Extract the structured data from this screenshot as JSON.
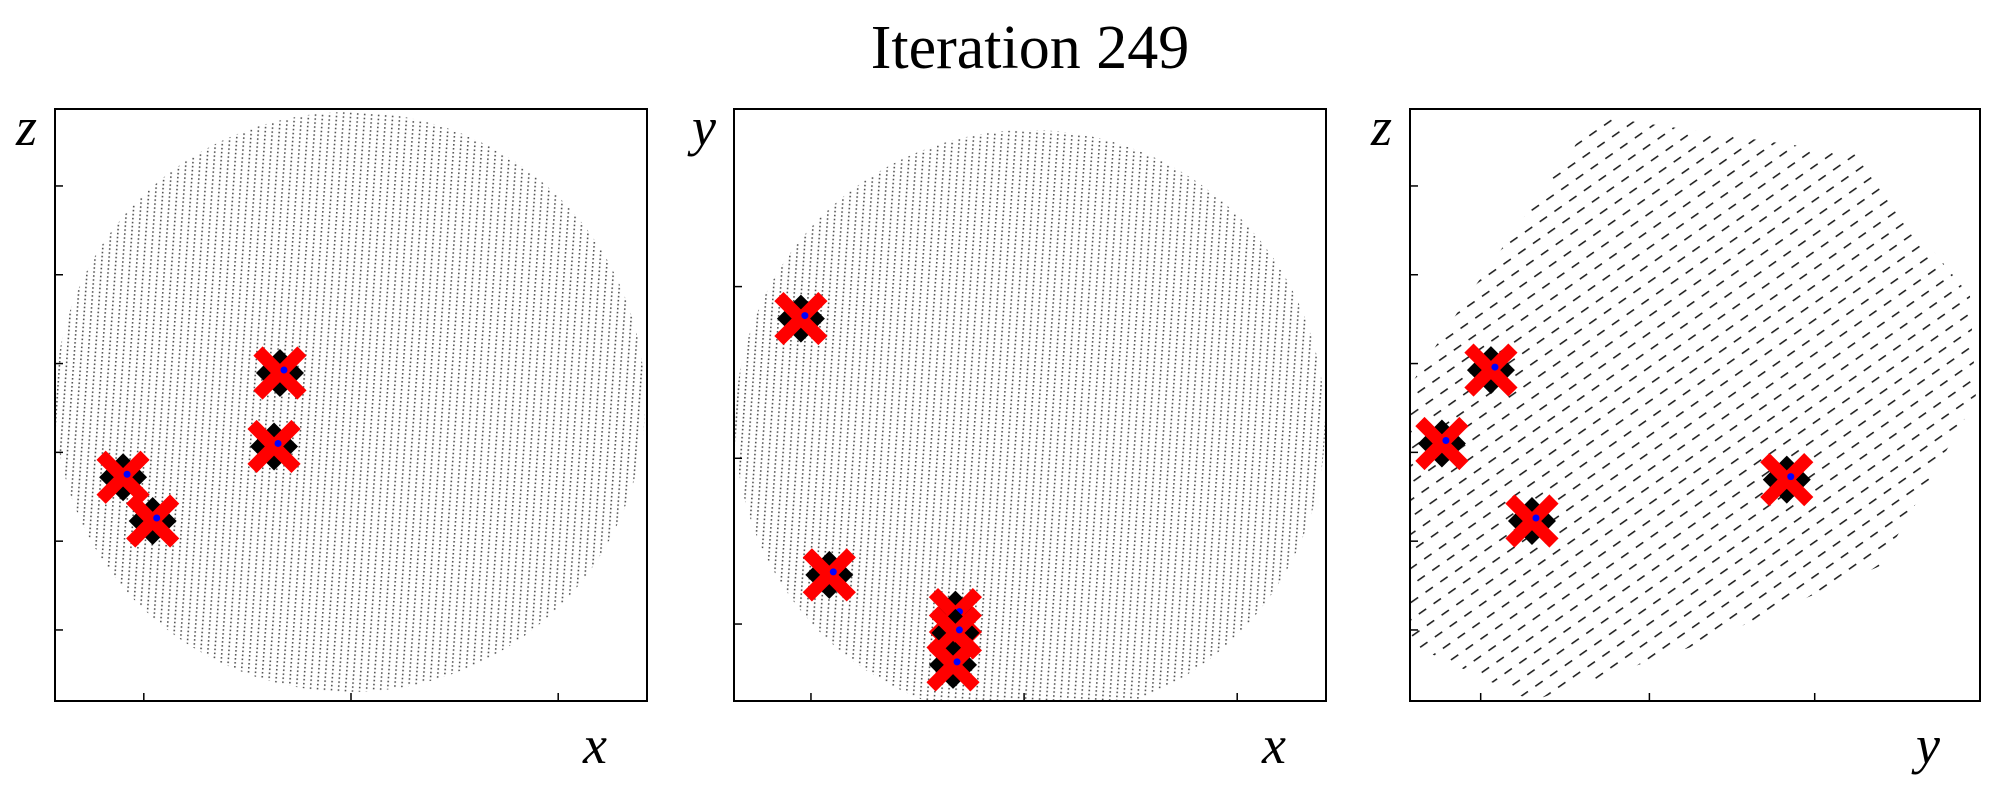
{
  "title": "Iteration 249",
  "chart_data": [
    {
      "type": "scatter",
      "x_label": "x",
      "y_label": "z",
      "xlim": [
        0,
        100
      ],
      "ylim": [
        0,
        100
      ],
      "xticks": [
        15,
        50,
        85
      ],
      "yticks": [
        12,
        27,
        42,
        57,
        72,
        87
      ],
      "x": [
        38,
        37,
        11.5,
        16.5
      ],
      "y": [
        55.4,
        43,
        37.8,
        30.4
      ]
    },
    {
      "type": "scatter",
      "x_label": "x",
      "y_label": "y",
      "xlim": [
        0,
        100
      ],
      "ylim": [
        0,
        100
      ],
      "xticks": [
        13,
        49,
        85
      ],
      "yticks": [
        13,
        41,
        70
      ],
      "x": [
        11.3,
        16.1,
        37.4,
        37.4,
        37
      ],
      "y": [
        64.6,
        21.3,
        14.6,
        11.5,
        6.1
      ]
    },
    {
      "type": "scatter",
      "x_label": "y",
      "y_label": "z",
      "xlim": [
        0,
        100
      ],
      "ylim": [
        0,
        100
      ],
      "xticks": [
        12.4,
        42,
        71,
        100
      ],
      "yticks": [
        12,
        27,
        42,
        57,
        72,
        87
      ],
      "x": [
        14.2,
        5.6,
        21.4,
        66.1
      ],
      "y": [
        55.9,
        43.5,
        30.4,
        37.4
      ]
    }
  ]
}
